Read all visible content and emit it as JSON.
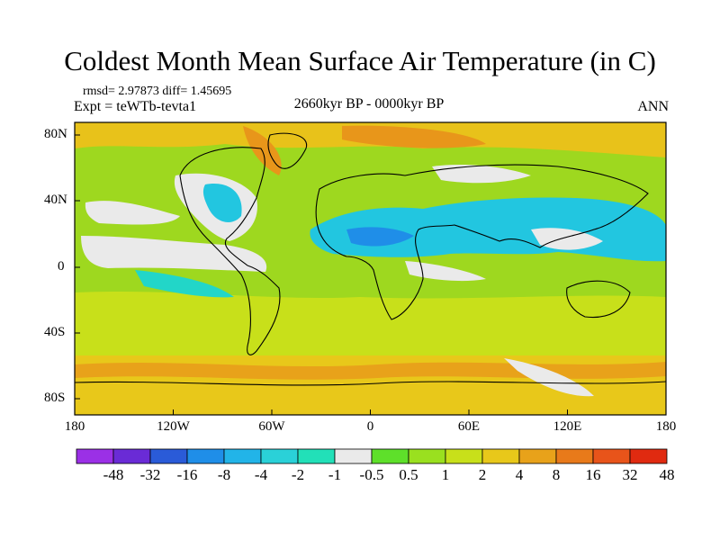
{
  "chart_data": {
    "type": "heatmap",
    "title": "Coldest Month Mean Surface Air Temperature (in C)",
    "stats": "rmsd= 2.97873 diff= 1.45695",
    "expt": "Expt = teWTb-tevta1",
    "period": "2660kyr BP - 0000kyr BP",
    "season": "ANN",
    "x_ticks": [
      "180",
      "120W",
      "60W",
      "0",
      "60E",
      "120E",
      "180"
    ],
    "y_ticks": [
      "80N",
      "40N",
      "0",
      "40S",
      "80S"
    ],
    "colorbar": {
      "labels": [
        "-48",
        "-32",
        "-16",
        "-8",
        "-4",
        "-2",
        "-1",
        "-0.5",
        "0.5",
        "1",
        "2",
        "4",
        "8",
        "16",
        "32",
        "48"
      ],
      "colors": [
        "#9b30e6",
        "#6a2bd6",
        "#2a5bd8",
        "#1f8ee8",
        "#22b4e8",
        "#2ad1d8",
        "#22e0b8",
        "#eaeaea",
        "#5ee02a",
        "#9ae01f",
        "#c8e01a",
        "#e8c81a",
        "#e8a21a",
        "#e87a1a",
        "#e8541a",
        "#e02a10"
      ]
    }
  }
}
